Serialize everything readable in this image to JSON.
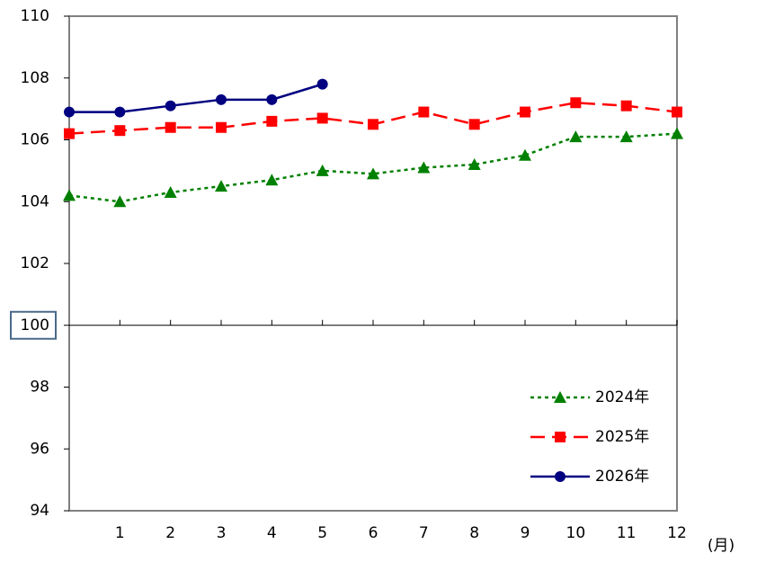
{
  "chart_data": {
    "type": "line",
    "x_label": "(月)",
    "categories": [
      null,
      "1",
      "2",
      "3",
      "4",
      "5",
      "6",
      "7",
      "8",
      "9",
      "10",
      "11",
      "12"
    ],
    "series": [
      {
        "name": "2024年",
        "color": "#008000",
        "dash": "4,4",
        "marker": "triangle",
        "values": [
          104.2,
          104.0,
          104.3,
          104.5,
          104.7,
          105.0,
          104.9,
          105.1,
          105.2,
          105.5,
          106.1,
          106.1,
          106.2
        ]
      },
      {
        "name": "2025年",
        "color": "#ff0000",
        "dash": "16,8",
        "marker": "square",
        "values": [
          106.2,
          106.3,
          106.4,
          106.4,
          106.6,
          106.7,
          106.5,
          106.9,
          106.5,
          106.9,
          107.2,
          107.1,
          106.9
        ]
      },
      {
        "name": "2026年",
        "color": "#000080",
        "dash": "none",
        "marker": "circle",
        "values": [
          106.9,
          106.9,
          107.1,
          107.3,
          107.3,
          107.8,
          null,
          null,
          null,
          null,
          null,
          null,
          null
        ]
      }
    ],
    "ylim": [
      94,
      110
    ],
    "yticks": [
      94,
      96,
      98,
      100,
      102,
      104,
      106,
      108,
      110
    ],
    "x_axis_at": 100,
    "legend": "lower-right",
    "grid": false
  }
}
